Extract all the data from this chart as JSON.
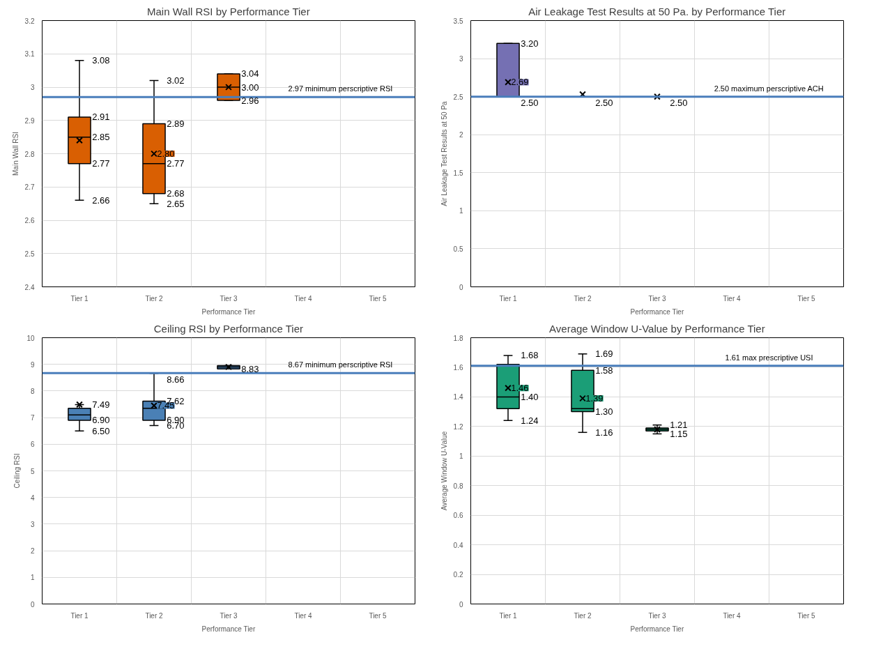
{
  "chart_data": [
    {
      "type": "box",
      "title": "Main Wall RSI by Performance Tier",
      "xlabel": "Performance Tier",
      "ylabel": "Main Wall RSI",
      "categories": [
        "Tier 1",
        "Tier 2",
        "Tier 3",
        "Tier 4",
        "Tier 5"
      ],
      "color": "#d95f02",
      "boxes": [
        {
          "low": 2.66,
          "q1": 2.77,
          "median": 2.85,
          "q3": 2.91,
          "high": 3.08
        },
        {
          "low": 2.65,
          "q1": 2.68,
          "median": 2.77,
          "q3": 2.89,
          "high": 3.02
        },
        {
          "low": 2.96,
          "q1": 2.96,
          "median": 3.0,
          "q3": 3.04,
          "high": 3.04
        },
        null,
        null
      ],
      "series": [
        {
          "type": "scatter",
          "marker": "cross",
          "color": "#000000",
          "x": [
            "Tier 1",
            "Tier 2",
            "Tier 3"
          ],
          "values": [
            2.84,
            2.8,
            3.0
          ],
          "value_labels": [
            null,
            "2.80",
            null
          ]
        }
      ],
      "ylim": [
        2.4,
        3.2
      ],
      "yticks": [
        2.4,
        2.5,
        2.6,
        2.7,
        2.8,
        2.9,
        3,
        3.1,
        3.2
      ],
      "grid": true,
      "ref_lines": [
        {
          "axis": "y",
          "value": 2.97,
          "label": "2.97 minimum perscriptive RSI",
          "color": "#4a7ebb"
        }
      ],
      "annotations": [
        {
          "text": "3.08",
          "x": "Tier 1",
          "y": 3.08
        },
        {
          "text": "2.91",
          "x": "Tier 1",
          "y": 2.91
        },
        {
          "text": "2.85",
          "x": "Tier 1",
          "y": 2.85
        },
        {
          "text": "2.77",
          "x": "Tier 1",
          "y": 2.77
        },
        {
          "text": "2.66",
          "x": "Tier 1",
          "y": 2.66
        },
        {
          "text": "3.02",
          "x": "Tier 2",
          "y": 3.02
        },
        {
          "text": "2.89",
          "x": "Tier 2",
          "y": 2.89
        },
        {
          "text": "2.77",
          "x": "Tier 2",
          "y": 2.77
        },
        {
          "text": "2.68",
          "x": "Tier 2",
          "y": 2.68
        },
        {
          "text": "2.65",
          "x": "Tier 2",
          "y": 2.65
        },
        {
          "text": "3.04",
          "x": "Tier 3",
          "y": 3.04
        },
        {
          "text": "3.00",
          "x": "Tier 3",
          "y": 3.0
        },
        {
          "text": "2.96",
          "x": "Tier 3",
          "y": 2.96
        }
      ]
    },
    {
      "type": "box",
      "title": "Air Leakage Test Results at 50 Pa. by Performance Tier",
      "xlabel": "Performance Tier",
      "ylabel": "Air Leakage Test Results at 50 Pa",
      "categories": [
        "Tier 1",
        "Tier 2",
        "Tier 3",
        "Tier 4",
        "Tier 5"
      ],
      "color": "#7570b3",
      "boxes": [
        {
          "low": 2.5,
          "q1": 2.5,
          "median": 2.5,
          "q3": 3.2,
          "high": 3.2
        },
        {
          "low": 2.5,
          "q1": 2.5,
          "median": 2.5,
          "q3": 2.5,
          "high": 2.5
        },
        {
          "low": 2.5,
          "q1": 2.5,
          "median": 2.5,
          "q3": 2.5,
          "high": 2.5
        },
        null,
        null
      ],
      "series": [
        {
          "type": "scatter",
          "marker": "cross",
          "color": "#000000",
          "x": [
            "Tier 1",
            "Tier 2",
            "Tier 3"
          ],
          "values": [
            2.69,
            2.53,
            2.5
          ],
          "value_labels": [
            "2.69",
            null,
            null
          ]
        }
      ],
      "ylim": [
        0,
        3.5
      ],
      "yticks": [
        0,
        0.5,
        1,
        1.5,
        2,
        2.5,
        3,
        3.5
      ],
      "grid": true,
      "ref_lines": [
        {
          "axis": "y",
          "value": 2.5,
          "label": "2.50 maximum perscriptive ACH",
          "color": "#4a7ebb"
        }
      ],
      "annotations": [
        {
          "text": "3.20",
          "x": "Tier 1",
          "y": 3.2
        },
        {
          "text": "2.50",
          "x": "Tier 1",
          "y": 2.5
        },
        {
          "text": "2.50",
          "x": "Tier 2",
          "y": 2.5
        },
        {
          "text": "2.50",
          "x": "Tier 3",
          "y": 2.5
        }
      ]
    },
    {
      "type": "box",
      "title": "Ceiling RSI by Performance Tier",
      "xlabel": "Performance Tier",
      "ylabel": "Ceiling RSI",
      "categories": [
        "Tier 1",
        "Tier 2",
        "Tier 3",
        "Tier 4",
        "Tier 5"
      ],
      "color": "#4a80b5",
      "boxes": [
        {
          "low": 6.5,
          "q1": 6.9,
          "median": 7.1,
          "q3": 7.35,
          "high": 7.49
        },
        {
          "low": 6.7,
          "q1": 6.9,
          "median": 7.35,
          "q3": 7.62,
          "high": 8.66
        },
        {
          "low": 8.83,
          "q1": 8.83,
          "median": 8.9,
          "q3": 8.95,
          "high": 8.95
        },
        null,
        null
      ],
      "series": [
        {
          "type": "scatter",
          "marker": "cross",
          "color": "#000000",
          "x": [
            "Tier 1",
            "Tier 2",
            "Tier 3"
          ],
          "values": [
            7.49,
            7.45,
            8.9
          ],
          "value_labels": [
            null,
            "7.45",
            null
          ]
        }
      ],
      "ylim": [
        0,
        10
      ],
      "yticks": [
        0,
        1,
        2,
        3,
        4,
        5,
        6,
        7,
        8,
        9,
        10
      ],
      "grid": true,
      "ref_lines": [
        {
          "axis": "y",
          "value": 8.67,
          "label": "8.67 minimum perscriptive RSI",
          "color": "#4a7ebb"
        }
      ],
      "annotations": [
        {
          "text": "7.49",
          "x": "Tier 1",
          "y": 7.49
        },
        {
          "text": "6.90",
          "x": "Tier 1",
          "y": 6.9
        },
        {
          "text": "6.50",
          "x": "Tier 1",
          "y": 6.5
        },
        {
          "text": "8.66",
          "x": "Tier 2",
          "y": 8.66
        },
        {
          "text": "7.62",
          "x": "Tier 2",
          "y": 7.62
        },
        {
          "text": "6.90",
          "x": "Tier 2",
          "y": 6.9
        },
        {
          "text": "6.70",
          "x": "Tier 2",
          "y": 6.7
        },
        {
          "text": "8.83",
          "x": "Tier 3",
          "y": 8.83
        }
      ]
    },
    {
      "type": "box",
      "title": "Average Window U-Value by Performance Tier",
      "xlabel": "Performance Tier",
      "ylabel": "Average Window U-Value",
      "categories": [
        "Tier 1",
        "Tier 2",
        "Tier 3",
        "Tier 4",
        "Tier 5"
      ],
      "color": "#1b9e77",
      "boxes": [
        {
          "low": 1.24,
          "q1": 1.32,
          "median": 1.4,
          "q3": 1.62,
          "high": 1.68
        },
        {
          "low": 1.16,
          "q1": 1.3,
          "median": 1.32,
          "q3": 1.58,
          "high": 1.69
        },
        {
          "low": 1.15,
          "q1": 1.17,
          "median": 1.18,
          "q3": 1.19,
          "high": 1.21
        },
        null,
        null
      ],
      "series": [
        {
          "type": "scatter",
          "marker": "cross",
          "color": "#000000",
          "x": [
            "Tier 1",
            "Tier 2",
            "Tier 3"
          ],
          "values": [
            1.46,
            1.39,
            1.18
          ],
          "value_labels": [
            "1.46",
            "1.39",
            null
          ]
        }
      ],
      "ylim": [
        0,
        1.8
      ],
      "yticks": [
        0,
        0.2,
        0.4,
        0.6,
        0.8,
        1,
        1.2,
        1.4,
        1.6,
        1.8
      ],
      "grid": true,
      "ref_lines": [
        {
          "axis": "y",
          "value": 1.61,
          "label": "1.61 max prescriptive USI",
          "color": "#4a7ebb"
        }
      ],
      "annotations": [
        {
          "text": "1.68",
          "x": "Tier 1",
          "y": 1.68
        },
        {
          "text": "1.40",
          "x": "Tier 1",
          "y": 1.4
        },
        {
          "text": "1.24",
          "x": "Tier 1",
          "y": 1.24
        },
        {
          "text": "1.69",
          "x": "Tier 2",
          "y": 1.69
        },
        {
          "text": "1.58",
          "x": "Tier 2",
          "y": 1.58
        },
        {
          "text": "1.30",
          "x": "Tier 2",
          "y": 1.3
        },
        {
          "text": "1.16",
          "x": "Tier 2",
          "y": 1.16
        },
        {
          "text": "1.21",
          "x": "Tier 3",
          "y": 1.21
        },
        {
          "text": "1.15",
          "x": "Tier 3",
          "y": 1.15
        }
      ]
    }
  ]
}
